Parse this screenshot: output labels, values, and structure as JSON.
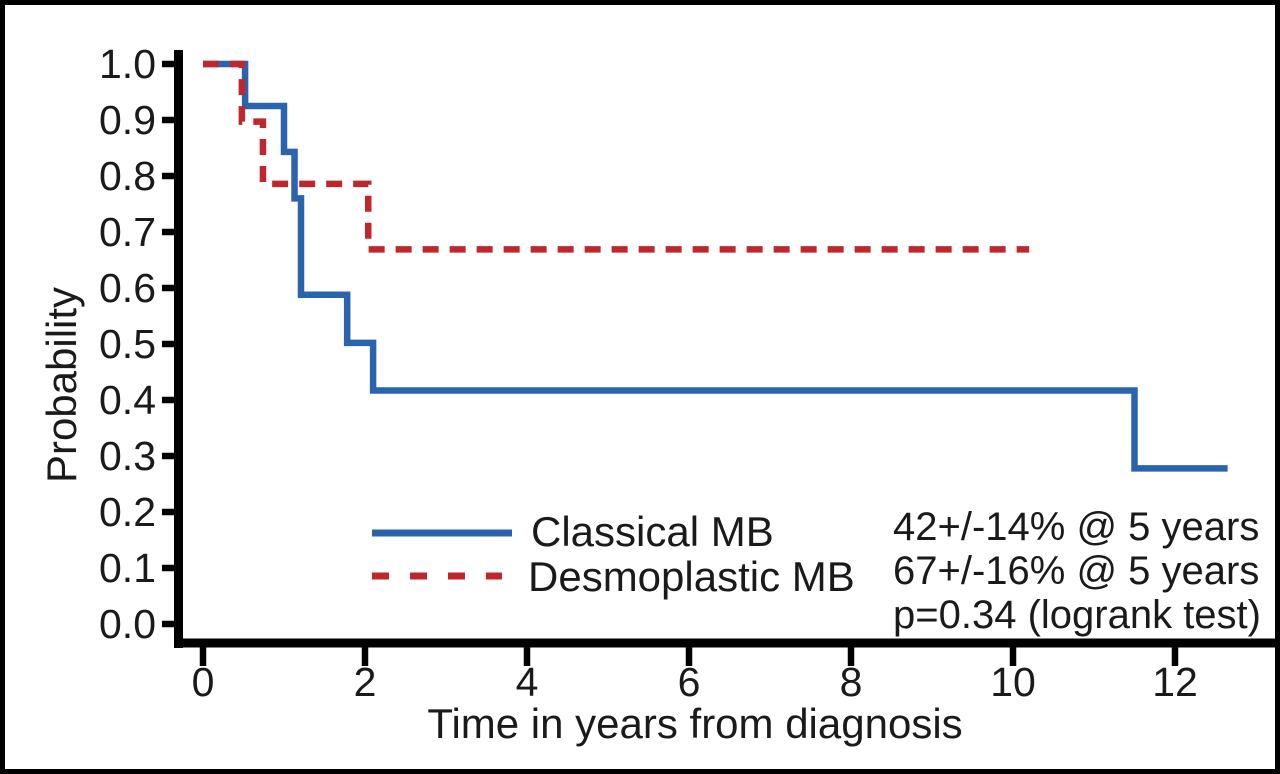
{
  "figure": {
    "background": "#ffffff",
    "frame_border_color": "#000000",
    "axis_color": "#000000",
    "text_color": "#1a1a1a"
  },
  "chart_data": {
    "type": "line",
    "subtype": "kaplan-meier-step-survival",
    "title": "",
    "xlabel": "Time in years from diagnosis",
    "ylabel": "Probability",
    "xlim": [
      0,
      13
    ],
    "ylim": [
      0.0,
      1.0
    ],
    "grid": false,
    "legend_position": "lower-center-inside",
    "x_ticks": [
      {
        "value": 0,
        "label": "0"
      },
      {
        "value": 2,
        "label": "2"
      },
      {
        "value": 4,
        "label": "4"
      },
      {
        "value": 6,
        "label": "6"
      },
      {
        "value": 8,
        "label": "8"
      },
      {
        "value": 10,
        "label": "10"
      },
      {
        "value": 12,
        "label": "12"
      }
    ],
    "y_ticks": [
      {
        "value": 0.0,
        "label": "0.0"
      },
      {
        "value": 0.1,
        "label": "0.1"
      },
      {
        "value": 0.2,
        "label": "0.2"
      },
      {
        "value": 0.3,
        "label": "0.3"
      },
      {
        "value": 0.4,
        "label": "0.4"
      },
      {
        "value": 0.5,
        "label": "0.5"
      },
      {
        "value": 0.6,
        "label": "0.6"
      },
      {
        "value": 0.7,
        "label": "0.7"
      },
      {
        "value": 0.8,
        "label": "0.8"
      },
      {
        "value": 0.9,
        "label": "0.9"
      },
      {
        "value": 1.0,
        "label": "1.0"
      }
    ],
    "series": [
      {
        "name": "Classical MB",
        "color": "#2a64ae",
        "line_style": "solid",
        "steps": [
          {
            "t": 0.0,
            "p": 1.0
          },
          {
            "t": 0.52,
            "p": 0.925
          },
          {
            "t": 1.0,
            "p": 0.843
          },
          {
            "t": 1.13,
            "p": 0.76
          },
          {
            "t": 1.21,
            "p": 0.588
          },
          {
            "t": 1.78,
            "p": 0.502
          },
          {
            "t": 2.1,
            "p": 0.417
          },
          {
            "t": 11.5,
            "p": 0.278
          }
        ],
        "end_t": 12.65,
        "result_note": "42+/-14% @ 5 years"
      },
      {
        "name": "Desmoplastic MB",
        "color": "#c2262d",
        "line_style": "dashed",
        "steps": [
          {
            "t": 0.0,
            "p": 1.0
          },
          {
            "t": 0.48,
            "p": 0.897
          },
          {
            "t": 0.74,
            "p": 0.786
          },
          {
            "t": 2.04,
            "p": 0.669
          }
        ],
        "end_t": 10.2,
        "result_note": "67+/-16% @ 5 years"
      }
    ],
    "annotations": [
      "42+/-14% @ 5 years",
      "67+/-16% @ 5 years",
      "p=0.34 (logrank test)"
    ]
  }
}
